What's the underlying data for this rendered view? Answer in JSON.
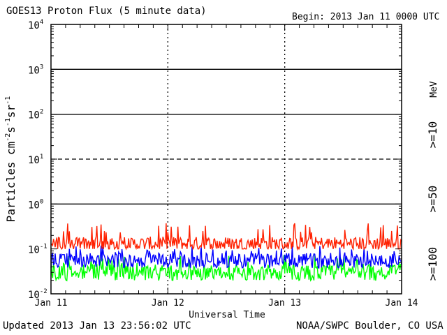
{
  "chart_data": {
    "type": "line",
    "title": "GOES13 Proton Flux (5 minute data)",
    "begin_label": "Begin: 2013 Jan 11 0000 UTC",
    "xlabel": "Universal Time",
    "ylabel_base": "Particles cm",
    "ylabel_exp1": "-2",
    "ylabel_mid1": "s",
    "ylabel_exp2": "-1",
    "ylabel_mid2": "sr",
    "ylabel_exp3": "-1",
    "y_scale": "log",
    "ylim": [
      0.01,
      10000
    ],
    "y_tick_labels": [
      {
        "value": 0.01,
        "base": "10",
        "exp": "-2"
      },
      {
        "value": 0.1,
        "base": "10",
        "exp": "-1"
      },
      {
        "value": 1,
        "base": "10",
        "exp": "0"
      },
      {
        "value": 10,
        "base": "10",
        "exp": "1"
      },
      {
        "value": 100,
        "base": "10",
        "exp": "2"
      },
      {
        "value": 1000,
        "base": "10",
        "exp": "3"
      },
      {
        "value": 10000,
        "base": "10",
        "exp": "4"
      }
    ],
    "x_tick_labels": [
      "Jan 11",
      "Jan 12",
      "Jan 13",
      "Jan 14"
    ],
    "xlim_days": [
      0,
      3
    ],
    "threshold_lines": [
      {
        "value": 1000,
        "style": "solid"
      },
      {
        "value": 100,
        "style": "solid"
      },
      {
        "value": 10,
        "style": "dashed"
      },
      {
        "value": 1,
        "style": "solid"
      }
    ],
    "series": [
      {
        "name": ">=10",
        "color": "#ff2000",
        "baseline": 0.13,
        "min": 0.1,
        "max": 0.38
      },
      {
        "name": ">=50",
        "color": "#0000ff",
        "baseline": 0.055,
        "min": 0.03,
        "max": 0.12
      },
      {
        "name": ">=100",
        "color": "#00ff00",
        "baseline": 0.03,
        "min": 0.016,
        "max": 0.075
      }
    ],
    "legend_unit": "MeV",
    "legend_placement": "right"
  },
  "footer": {
    "updated": "Updated 2013 Jan 13 23:56:02 UTC",
    "credit": "NOAA/SWPC Boulder, CO USA"
  }
}
